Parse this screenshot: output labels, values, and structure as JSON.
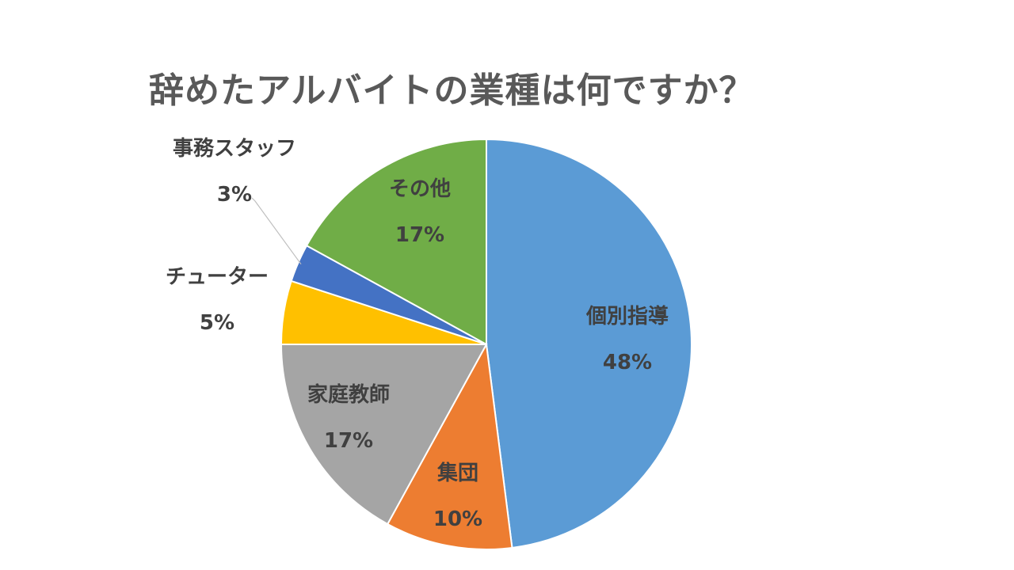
{
  "chart_data": {
    "type": "pie",
    "title": "辞めたアルバイトの業種は何ですか？",
    "slices": [
      {
        "label": "個別指導",
        "value": 48,
        "value_label": "48%",
        "color": "#5b9bd5"
      },
      {
        "label": "集団",
        "value": 10,
        "value_label": "10%",
        "color": "#ed7d31"
      },
      {
        "label": "家庭教師",
        "value": 17,
        "value_label": "17%",
        "color": "#a5a5a5"
      },
      {
        "label": "チューター",
        "value": 5,
        "value_label": "5%",
        "color": "#ffc000"
      },
      {
        "label": "事務スタッフ",
        "value": 3,
        "value_label": "3%",
        "color": "#4472c4"
      },
      {
        "label": "その他",
        "value": 17,
        "value_label": "17%",
        "color": "#70ad47"
      }
    ],
    "legend": "none",
    "data_labels": "category and percent"
  }
}
